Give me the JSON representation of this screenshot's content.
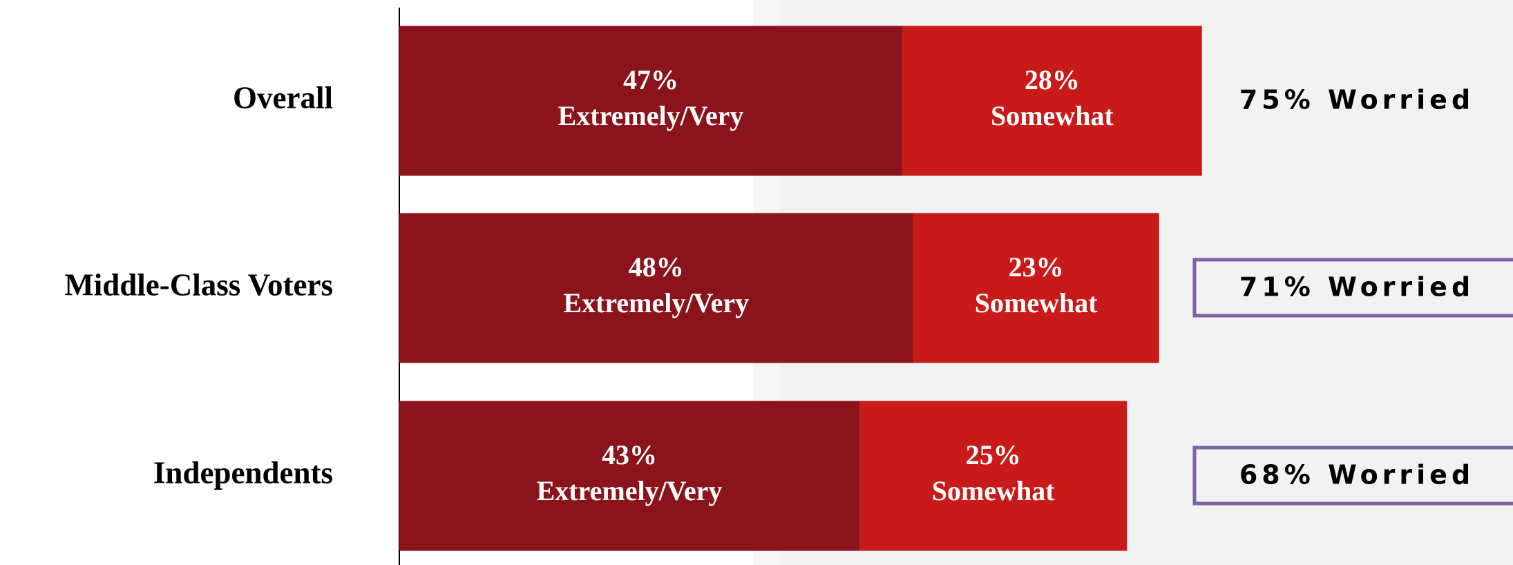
{
  "chart_data": {
    "type": "stacked-bar-horizontal",
    "categories": [
      "Overall",
      "Middle-Class Voters",
      "Independents"
    ],
    "series": [
      {
        "name": "Extremely/Very",
        "color": "#8b141c",
        "values": [
          47,
          48,
          43
        ],
        "value_labels": [
          "47%",
          "48%",
          "43%"
        ]
      },
      {
        "name": "Somewhat",
        "color": "#c81b19",
        "values": [
          28,
          23,
          25
        ],
        "value_labels": [
          "28%",
          "23%",
          "25%"
        ]
      }
    ],
    "totals": [
      75,
      71,
      68
    ],
    "total_labels": [
      "75% Worried",
      "71% Worried",
      "68% Worried"
    ],
    "total_boxed": [
      false,
      true,
      true
    ],
    "box_color": "#8064a2",
    "xlim": [
      0,
      100
    ]
  }
}
